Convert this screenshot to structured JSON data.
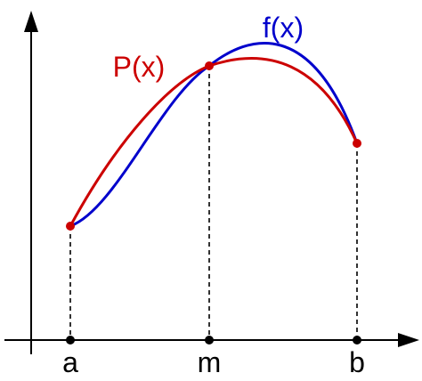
{
  "curves": {
    "f": "f(x)",
    "p": "P(x)"
  },
  "points": {
    "a": "a",
    "m": "m",
    "b": "b"
  }
}
